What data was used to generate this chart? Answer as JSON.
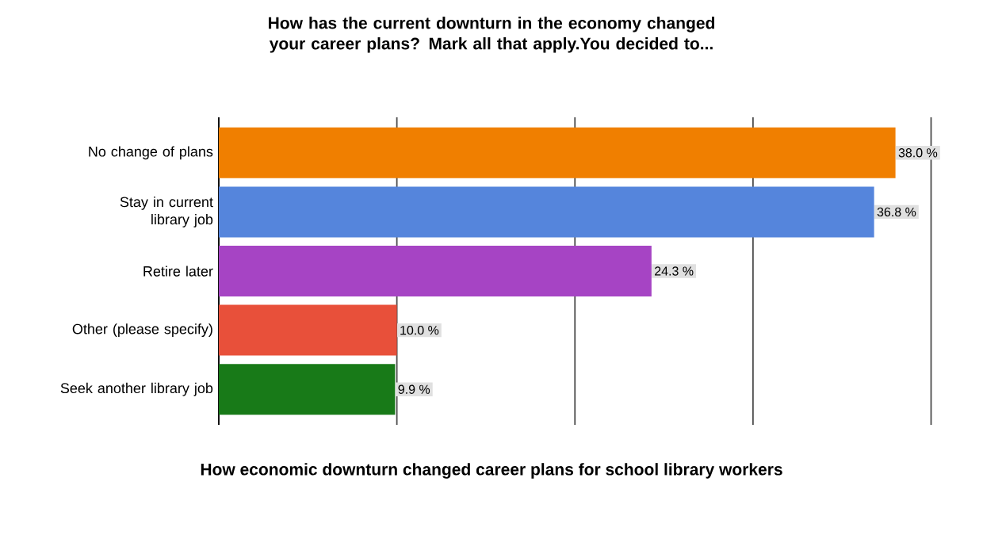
{
  "chart_data": {
    "type": "bar",
    "orientation": "horizontal",
    "title": "How has the current downturn in the economy changed your career plans? Mark all that apply.You decided to...",
    "categories": [
      "No change of plans",
      "Stay in current library job",
      "Retire later",
      "Other (please specify)",
      "Seek another library job"
    ],
    "values": [
      38.0,
      36.8,
      24.3,
      10.0,
      9.9
    ],
    "value_labels": [
      "38.0 %",
      "36.8 %",
      "24.3 %",
      "10.0 %",
      "9.9 %"
    ],
    "colors": [
      "#f07f00",
      "#5585dc",
      "#a644c4",
      "#e8503a",
      "#187a18"
    ],
    "grid": "x",
    "tick_labels": "y",
    "annotations": [
      "How economic downturn changed career plans for school library workers"
    ]
  }
}
